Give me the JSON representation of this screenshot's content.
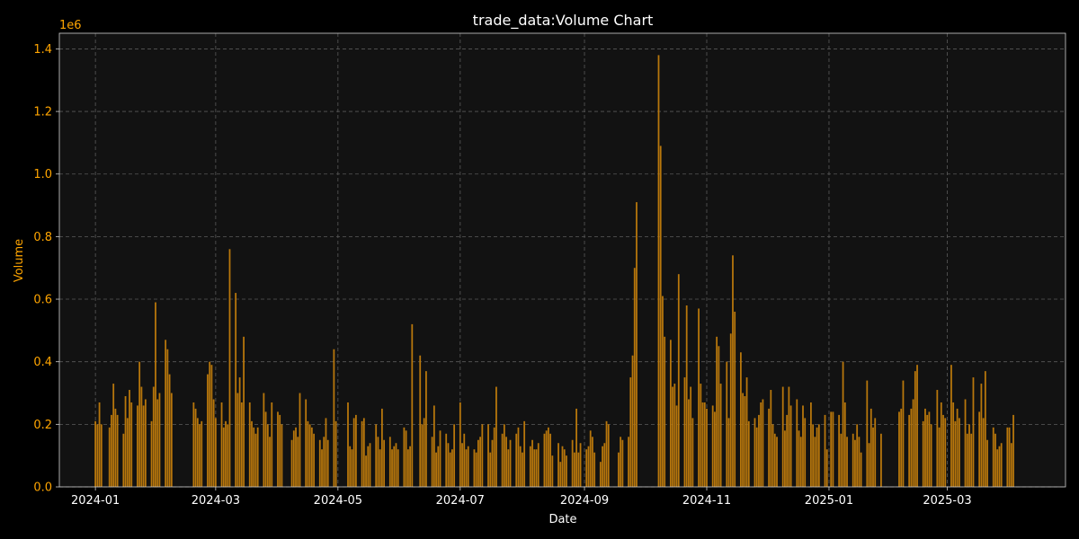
{
  "chart_data": {
    "type": "bar",
    "title": "trade_data:Volume Chart",
    "xlabel": "Date",
    "ylabel": "Volume",
    "y_offset_label": "1e6",
    "ylim": [
      0,
      1.45
    ],
    "y_ticks": [
      0.0,
      0.2,
      0.4,
      0.6,
      0.8,
      1.0,
      1.2,
      1.4
    ],
    "y_tick_labels": [
      "0.0",
      "0.2",
      "0.4",
      "0.6",
      "0.8",
      "1.0",
      "1.2",
      "1.4"
    ],
    "x_range": [
      "2023-12-14",
      "2025-04-29"
    ],
    "x_ticks": [
      "2024-01-01",
      "2024-03-01",
      "2024-05-01",
      "2024-07-01",
      "2024-09-01",
      "2024-11-01",
      "2025-01-01",
      "2025-03-01"
    ],
    "x_tick_labels": [
      "2024-01",
      "2024-03",
      "2024-05",
      "2024-07",
      "2024-09",
      "2024-11",
      "2025-01",
      "2025-03"
    ],
    "grid": true,
    "colors": {
      "background": "#000000",
      "plot_background": "#121212",
      "bar": "#b8770c",
      "grid": "#5a5a5a",
      "axis_text": "#ffa500",
      "label_text": "#ffffff"
    },
    "series": [
      {
        "x": [
          "2024-01-01",
          "2024-01-02",
          "2024-01-03",
          "2024-01-04",
          "2024-01-08",
          "2024-01-09",
          "2024-01-10",
          "2024-01-11",
          "2024-01-12",
          "2024-01-15",
          "2024-01-16",
          "2024-01-17",
          "2024-01-18",
          "2024-01-19",
          "2024-01-22",
          "2024-01-23",
          "2024-01-24",
          "2024-01-25",
          "2024-01-26",
          "2024-01-29",
          "2024-01-30",
          "2024-01-31",
          "2024-02-01",
          "2024-02-02",
          "2024-02-05",
          "2024-02-06",
          "2024-02-07",
          "2024-02-08",
          "2024-02-19",
          "2024-02-20",
          "2024-02-21",
          "2024-02-22",
          "2024-02-23",
          "2024-02-26",
          "2024-02-27",
          "2024-02-28",
          "2024-02-29",
          "2024-03-01",
          "2024-03-04",
          "2024-03-05",
          "2024-03-06",
          "2024-03-07",
          "2024-03-08",
          "2024-03-11",
          "2024-03-12",
          "2024-03-13",
          "2024-03-14",
          "2024-03-15",
          "2024-03-18",
          "2024-03-19",
          "2024-03-20",
          "2024-03-21",
          "2024-03-22",
          "2024-03-25",
          "2024-03-26",
          "2024-03-27",
          "2024-03-28",
          "2024-03-29",
          "2024-04-01",
          "2024-04-02",
          "2024-04-03",
          "2024-04-08",
          "2024-04-09",
          "2024-04-10",
          "2024-04-11",
          "2024-04-12",
          "2024-04-15",
          "2024-04-16",
          "2024-04-17",
          "2024-04-18",
          "2024-04-19",
          "2024-04-22",
          "2024-04-23",
          "2024-04-24",
          "2024-04-25",
          "2024-04-26",
          "2024-04-29",
          "2024-04-30",
          "2024-05-06",
          "2024-05-07",
          "2024-05-08",
          "2024-05-09",
          "2024-05-10",
          "2024-05-13",
          "2024-05-14",
          "2024-05-15",
          "2024-05-16",
          "2024-05-17",
          "2024-05-20",
          "2024-05-21",
          "2024-05-22",
          "2024-05-23",
          "2024-05-24",
          "2024-05-27",
          "2024-05-28",
          "2024-05-29",
          "2024-05-30",
          "2024-05-31",
          "2024-06-03",
          "2024-06-04",
          "2024-06-05",
          "2024-06-06",
          "2024-06-07",
          "2024-06-11",
          "2024-06-12",
          "2024-06-13",
          "2024-06-14",
          "2024-06-17",
          "2024-06-18",
          "2024-06-19",
          "2024-06-20",
          "2024-06-21",
          "2024-06-24",
          "2024-06-25",
          "2024-06-26",
          "2024-06-27",
          "2024-06-28",
          "2024-07-01",
          "2024-07-02",
          "2024-07-03",
          "2024-07-04",
          "2024-07-05",
          "2024-07-08",
          "2024-07-09",
          "2024-07-10",
          "2024-07-11",
          "2024-07-12",
          "2024-07-15",
          "2024-07-16",
          "2024-07-17",
          "2024-07-18",
          "2024-07-19",
          "2024-07-22",
          "2024-07-23",
          "2024-07-24",
          "2024-07-25",
          "2024-07-26",
          "2024-07-29",
          "2024-07-30",
          "2024-07-31",
          "2024-08-01",
          "2024-08-02",
          "2024-08-05",
          "2024-08-06",
          "2024-08-07",
          "2024-08-08",
          "2024-08-09",
          "2024-08-12",
          "2024-08-13",
          "2024-08-14",
          "2024-08-15",
          "2024-08-16",
          "2024-08-19",
          "2024-08-20",
          "2024-08-21",
          "2024-08-22",
          "2024-08-23",
          "2024-08-26",
          "2024-08-27",
          "2024-08-28",
          "2024-08-29",
          "2024-08-30",
          "2024-09-02",
          "2024-09-03",
          "2024-09-04",
          "2024-09-05",
          "2024-09-06",
          "2024-09-09",
          "2024-09-10",
          "2024-09-11",
          "2024-09-12",
          "2024-09-13",
          "2024-09-18",
          "2024-09-19",
          "2024-09-20",
          "2024-09-23",
          "2024-09-24",
          "2024-09-25",
          "2024-09-26",
          "2024-09-27",
          "2024-10-08",
          "2024-10-09",
          "2024-10-10",
          "2024-10-11",
          "2024-10-14",
          "2024-10-15",
          "2024-10-16",
          "2024-10-17",
          "2024-10-18",
          "2024-10-21",
          "2024-10-22",
          "2024-10-23",
          "2024-10-24",
          "2024-10-25",
          "2024-10-28",
          "2024-10-29",
          "2024-10-30",
          "2024-10-31",
          "2024-11-01",
          "2024-11-04",
          "2024-11-05",
          "2024-11-06",
          "2024-11-07",
          "2024-11-08",
          "2024-11-11",
          "2024-11-12",
          "2024-11-13",
          "2024-11-14",
          "2024-11-15",
          "2024-11-18",
          "2024-11-19",
          "2024-11-20",
          "2024-11-21",
          "2024-11-22",
          "2024-11-25",
          "2024-11-26",
          "2024-11-27",
          "2024-11-28",
          "2024-11-29",
          "2024-12-02",
          "2024-12-03",
          "2024-12-04",
          "2024-12-05",
          "2024-12-06",
          "2024-12-09",
          "2024-12-10",
          "2024-12-11",
          "2024-12-12",
          "2024-12-13",
          "2024-12-16",
          "2024-12-17",
          "2024-12-18",
          "2024-12-19",
          "2024-12-20",
          "2024-12-23",
          "2024-12-24",
          "2024-12-25",
          "2024-12-26",
          "2024-12-27",
          "2024-12-30",
          "2024-12-31",
          "2025-01-02",
          "2025-01-03",
          "2025-01-06",
          "2025-01-07",
          "2025-01-08",
          "2025-01-09",
          "2025-01-10",
          "2025-01-13",
          "2025-01-14",
          "2025-01-15",
          "2025-01-16",
          "2025-01-17",
          "2025-01-20",
          "2025-01-21",
          "2025-01-22",
          "2025-01-23",
          "2025-01-24",
          "2025-01-27",
          "2025-02-05",
          "2025-02-06",
          "2025-02-07",
          "2025-02-10",
          "2025-02-11",
          "2025-02-12",
          "2025-02-13",
          "2025-02-14",
          "2025-02-17",
          "2025-02-18",
          "2025-02-19",
          "2025-02-20",
          "2025-02-21",
          "2025-02-24",
          "2025-02-25",
          "2025-02-26",
          "2025-02-27",
          "2025-02-28",
          "2025-03-03",
          "2025-03-04",
          "2025-03-05",
          "2025-03-06",
          "2025-03-07",
          "2025-03-10",
          "2025-03-11",
          "2025-03-12",
          "2025-03-13",
          "2025-03-14",
          "2025-03-17",
          "2025-03-18",
          "2025-03-19",
          "2025-03-20",
          "2025-03-21",
          "2025-03-24",
          "2025-03-25",
          "2025-03-26",
          "2025-03-27",
          "2025-03-28",
          "2025-03-31",
          "2025-04-01",
          "2025-04-02",
          "2025-04-03"
        ],
        "values": [
          0.21,
          0.2,
          0.27,
          0.2,
          0.19,
          0.23,
          0.33,
          0.25,
          0.23,
          0.17,
          0.29,
          0.22,
          0.31,
          0.27,
          0.26,
          0.4,
          0.32,
          0.26,
          0.28,
          0.21,
          0.32,
          0.59,
          0.28,
          0.3,
          0.47,
          0.44,
          0.36,
          0.3,
          0.27,
          0.25,
          0.22,
          0.2,
          0.21,
          0.36,
          0.4,
          0.39,
          0.28,
          0.22,
          0.27,
          0.19,
          0.21,
          0.2,
          0.76,
          0.62,
          0.3,
          0.35,
          0.27,
          0.48,
          0.27,
          0.21,
          0.19,
          0.17,
          0.19,
          0.3,
          0.24,
          0.2,
          0.16,
          0.27,
          0.24,
          0.23,
          0.2,
          0.15,
          0.18,
          0.19,
          0.16,
          0.3,
          0.28,
          0.21,
          0.2,
          0.19,
          0.17,
          0.15,
          0.12,
          0.16,
          0.22,
          0.15,
          0.44,
          0.21,
          0.27,
          0.13,
          0.12,
          0.22,
          0.23,
          0.21,
          0.22,
          0.1,
          0.13,
          0.14,
          0.2,
          0.16,
          0.12,
          0.25,
          0.15,
          0.16,
          0.12,
          0.13,
          0.14,
          0.12,
          0.19,
          0.18,
          0.12,
          0.13,
          0.52,
          0.42,
          0.2,
          0.22,
          0.37,
          0.16,
          0.26,
          0.11,
          0.13,
          0.18,
          0.17,
          0.14,
          0.11,
          0.12,
          0.2,
          0.27,
          0.14,
          0.17,
          0.12,
          0.13,
          0.12,
          0.11,
          0.15,
          0.16,
          0.2,
          0.2,
          0.11,
          0.15,
          0.19,
          0.32,
          0.17,
          0.2,
          0.16,
          0.12,
          0.15,
          0.17,
          0.19,
          0.13,
          0.11,
          0.21,
          0.13,
          0.15,
          0.12,
          0.12,
          0.14,
          0.17,
          0.18,
          0.19,
          0.17,
          0.1,
          0.14,
          0.08,
          0.13,
          0.12,
          0.1,
          0.15,
          0.11,
          0.25,
          0.11,
          0.14,
          0.12,
          0.13,
          0.18,
          0.16,
          0.11,
          0.08,
          0.13,
          0.14,
          0.21,
          0.2,
          0.11,
          0.16,
          0.15,
          0.16,
          0.35,
          0.42,
          0.7,
          0.91,
          1.38,
          1.09,
          0.61,
          0.48,
          0.47,
          0.32,
          0.33,
          0.26,
          0.68,
          0.35,
          0.58,
          0.28,
          0.32,
          0.22,
          0.57,
          0.33,
          0.27,
          0.27,
          0.25,
          0.26,
          0.24,
          0.48,
          0.45,
          0.33,
          0.4,
          0.22,
          0.49,
          0.74,
          0.56,
          0.43,
          0.3,
          0.29,
          0.35,
          0.21,
          0.22,
          0.19,
          0.23,
          0.27,
          0.28,
          0.25,
          0.31,
          0.2,
          0.17,
          0.16,
          0.32,
          0.18,
          0.23,
          0.32,
          0.26,
          0.28,
          0.18,
          0.16,
          0.26,
          0.22,
          0.27,
          0.2,
          0.16,
          0.19,
          0.2,
          0.23,
          0.12,
          0.24,
          0.24,
          0.23,
          0.17,
          0.4,
          0.27,
          0.16,
          0.17,
          0.15,
          0.2,
          0.16,
          0.11,
          0.34,
          0.14,
          0.25,
          0.19,
          0.22,
          0.17,
          0.24,
          0.25,
          0.34,
          0.23,
          0.25,
          0.28,
          0.37,
          0.39,
          0.21,
          0.25,
          0.23,
          0.24,
          0.2,
          0.31,
          0.19,
          0.27,
          0.23,
          0.22,
          0.39,
          0.27,
          0.21,
          0.25,
          0.22,
          0.28,
          0.17,
          0.2,
          0.17,
          0.35,
          0.24,
          0.33,
          0.22,
          0.37,
          0.15,
          0.19,
          0.17,
          0.12,
          0.13,
          0.14,
          0.19,
          0.19,
          0.14,
          0.23
        ]
      }
    ]
  }
}
